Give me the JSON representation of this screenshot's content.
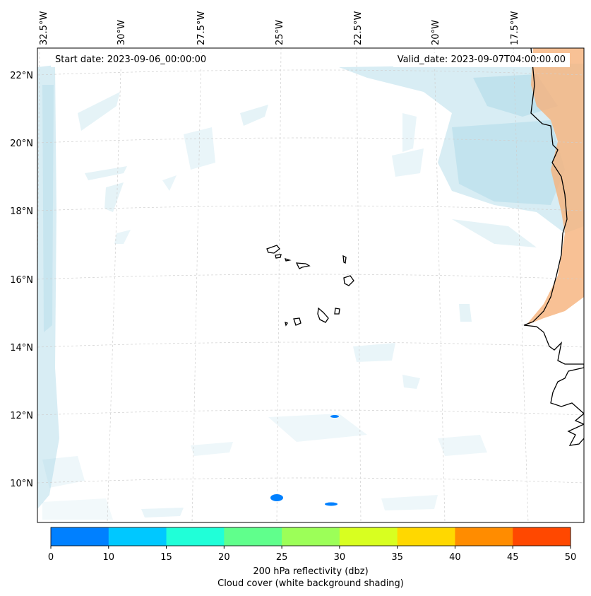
{
  "header": {
    "start_date": "Start date: 2023-09-06_00:00:00",
    "valid_date": "Valid_date: 2023-09-07T04:00:00.00"
  },
  "map": {
    "lon_labels": [
      "32.5°W",
      "30°W",
      "27.5°W",
      "25°W",
      "22.5°W",
      "20°W",
      "17.5°W"
    ],
    "lat_labels": [
      "22°N",
      "20°N",
      "18°N",
      "16°N",
      "14°N",
      "12°N",
      "10°N"
    ],
    "coastline_color": "#000000",
    "gridline_color": "#cfcfcf",
    "cloud_color": "#a8d8e6",
    "land_shading_color": "#f6b27a"
  },
  "colorbar": {
    "ticks": [
      "0",
      "10",
      "15",
      "20",
      "25",
      "30",
      "35",
      "40",
      "45",
      "50"
    ],
    "colors": [
      "#0080ff",
      "#00c8ff",
      "#20ffd8",
      "#60ff8c",
      "#9cff58",
      "#d8ff20",
      "#ffd800",
      "#ff8c00",
      "#ff4800"
    ],
    "label_line1": "200 hPa reflectivity (dbz)",
    "label_line2": "Cloud cover (white background shading)"
  }
}
